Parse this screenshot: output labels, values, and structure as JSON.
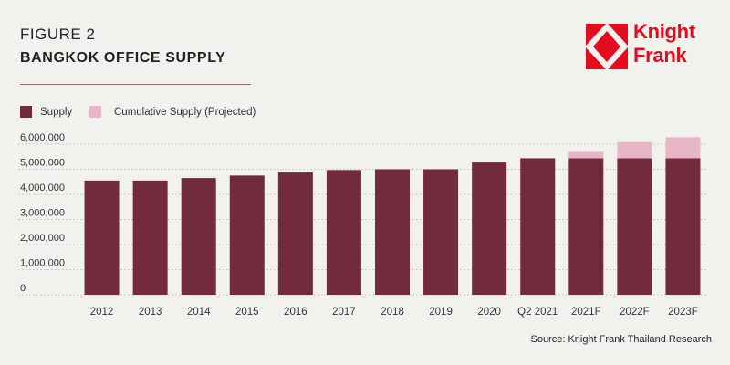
{
  "header": {
    "figure_label": "FIGURE 2",
    "title": "BANGKOK OFFICE SUPPLY"
  },
  "logo": {
    "line1": "Knight",
    "line2": "Frank",
    "color": "#e30b1d"
  },
  "source": "Source: Knight Frank Thailand Research",
  "colors": {
    "supply": "#722a3e",
    "projected": "#e7b7c8",
    "background": "#f1f1ee"
  },
  "chart_data": {
    "type": "bar",
    "stacked": true,
    "title": "BANGKOK OFFICE SUPPLY",
    "categories": [
      "2012",
      "2013",
      "2014",
      "2015",
      "2016",
      "2017",
      "2018",
      "2019",
      "2020",
      "Q2 2021",
      "2021F",
      "2022F",
      "2023F"
    ],
    "series": [
      {
        "name": "Supply",
        "values": [
          4550000,
          4550000,
          4650000,
          4750000,
          4870000,
          4970000,
          5000000,
          5000000,
          5270000,
          5440000,
          5440000,
          5440000,
          5440000
        ]
      },
      {
        "name": "Cumulative Supply (Projected)",
        "values": [
          0,
          0,
          0,
          0,
          0,
          0,
          0,
          0,
          0,
          0,
          260000,
          640000,
          840000
        ]
      }
    ],
    "y_ticks": [
      "0",
      "1,000,000",
      "2,000,000",
      "3,000,000",
      "4,000,000",
      "5,000,000",
      "6,000,000"
    ],
    "ylim": [
      0,
      6000000
    ],
    "xlabel": "",
    "ylabel": "",
    "grid": true,
    "legend": "top-left"
  }
}
